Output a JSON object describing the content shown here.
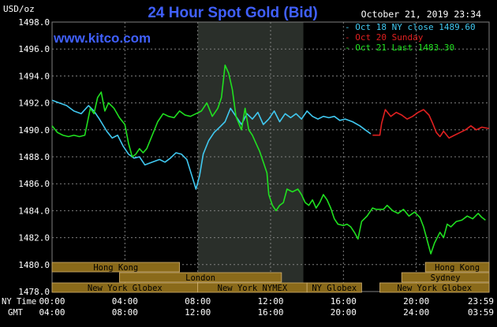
{
  "header": {
    "title": "24 Hour Spot Gold (Bid)",
    "unit_label": "USD/oz",
    "timestamp": "October 21, 2019 23:34",
    "watermark": "www.kitco.com"
  },
  "colors": {
    "background": "#000000",
    "grid": "#808080",
    "title": "#4060ff",
    "axis_text": "#ffffff",
    "oct18": "#40c8f0",
    "oct20": "#e02020",
    "oct21": "#20e020",
    "band_fill": "#8a6a1a",
    "band_text": "#000000",
    "band_edge": "#d0b070",
    "london_highlight": "#2a2f2a"
  },
  "chart_data": {
    "type": "line",
    "title": "24 Hour Spot Gold (Bid)",
    "ylabel": "USD/oz",
    "ylim": [
      1478.0,
      1498.0
    ],
    "y_ticks": [
      "1478.0",
      "1480.0",
      "1482.0",
      "1484.0",
      "1486.0",
      "1488.0",
      "1490.0",
      "1492.0",
      "1494.0",
      "1496.0",
      "1498.0"
    ],
    "x_range": [
      0,
      24
    ],
    "x_ticks": [
      {
        "ny": "00:00",
        "gmt": "04:00"
      },
      {
        "ny": "04:00",
        "gmt": "08:00"
      },
      {
        "ny": "08:00",
        "gmt": "12:00"
      },
      {
        "ny": "12:00",
        "gmt": "16:00"
      },
      {
        "ny": "16:00",
        "gmt": "20:00"
      },
      {
        "ny": "20:00",
        "gmt": "24:00"
      },
      {
        "ny": "23:59",
        "gmt": "03:59"
      }
    ],
    "x_axis_labels": {
      "ny": "NY Time",
      "gmt": "GMT"
    },
    "grid": true,
    "legend_position": "top-right",
    "legend": [
      {
        "key": "oct18",
        "text": "- Oct 18 NY close 1489.60"
      },
      {
        "key": "oct20",
        "text": "- Oct 20 Sunday"
      },
      {
        "key": "oct21",
        "text": "- Oct 21 Last 1483.30"
      }
    ],
    "series": [
      {
        "name": "Oct 18",
        "color_key": "oct18",
        "points": [
          [
            0,
            1492.2
          ],
          [
            0.4,
            1492.0
          ],
          [
            0.8,
            1491.8
          ],
          [
            1.2,
            1491.4
          ],
          [
            1.6,
            1491.2
          ],
          [
            2.0,
            1491.8
          ],
          [
            2.3,
            1491.4
          ],
          [
            2.6,
            1490.8
          ],
          [
            3.0,
            1489.9
          ],
          [
            3.3,
            1489.4
          ],
          [
            3.6,
            1489.6
          ],
          [
            3.9,
            1488.8
          ],
          [
            4.2,
            1488.2
          ],
          [
            4.5,
            1487.9
          ],
          [
            4.8,
            1488.0
          ],
          [
            5.1,
            1487.4
          ],
          [
            5.5,
            1487.6
          ],
          [
            5.9,
            1487.8
          ],
          [
            6.2,
            1487.6
          ],
          [
            6.5,
            1487.9
          ],
          [
            6.8,
            1488.3
          ],
          [
            7.1,
            1488.2
          ],
          [
            7.4,
            1487.8
          ],
          [
            7.7,
            1486.5
          ],
          [
            7.9,
            1485.6
          ],
          [
            8.1,
            1486.6
          ],
          [
            8.3,
            1488.2
          ],
          [
            8.6,
            1489.2
          ],
          [
            8.9,
            1489.8
          ],
          [
            9.2,
            1490.2
          ],
          [
            9.5,
            1490.6
          ],
          [
            9.8,
            1491.6
          ],
          [
            10.1,
            1491.0
          ],
          [
            10.4,
            1490.4
          ],
          [
            10.7,
            1491.2
          ],
          [
            11.0,
            1490.8
          ],
          [
            11.3,
            1491.3
          ],
          [
            11.6,
            1490.4
          ],
          [
            11.9,
            1490.8
          ],
          [
            12.2,
            1491.4
          ],
          [
            12.5,
            1490.6
          ],
          [
            12.8,
            1491.2
          ],
          [
            13.1,
            1490.9
          ],
          [
            13.4,
            1491.2
          ],
          [
            13.7,
            1490.8
          ],
          [
            14.0,
            1491.4
          ],
          [
            14.3,
            1491.0
          ],
          [
            14.6,
            1490.8
          ],
          [
            14.9,
            1491.0
          ],
          [
            15.2,
            1490.9
          ],
          [
            15.5,
            1491.0
          ],
          [
            15.8,
            1490.7
          ],
          [
            16.1,
            1490.8
          ],
          [
            16.5,
            1490.6
          ],
          [
            16.9,
            1490.3
          ],
          [
            17.2,
            1490.0
          ],
          [
            17.5,
            1489.7
          ]
        ]
      },
      {
        "name": "Oct 20",
        "color_key": "oct20",
        "points": [
          [
            17.6,
            1489.6
          ],
          [
            18.0,
            1489.6
          ],
          [
            18.1,
            1490.5
          ],
          [
            18.3,
            1491.5
          ],
          [
            18.6,
            1491.0
          ],
          [
            18.9,
            1491.3
          ],
          [
            19.2,
            1491.1
          ],
          [
            19.5,
            1490.8
          ],
          [
            19.8,
            1491.0
          ],
          [
            20.1,
            1491.3
          ],
          [
            20.4,
            1491.5
          ],
          [
            20.7,
            1491.1
          ],
          [
            20.9,
            1490.5
          ],
          [
            21.1,
            1489.8
          ],
          [
            21.3,
            1489.5
          ],
          [
            21.5,
            1489.9
          ],
          [
            21.8,
            1489.4
          ],
          [
            22.1,
            1489.6
          ],
          [
            22.4,
            1489.8
          ],
          [
            22.7,
            1490.0
          ],
          [
            23.0,
            1490.3
          ],
          [
            23.3,
            1490.0
          ],
          [
            23.6,
            1490.2
          ],
          [
            23.99,
            1490.1
          ]
        ]
      },
      {
        "name": "Oct 21",
        "color_key": "oct21",
        "points": [
          [
            0,
            1490.3
          ],
          [
            0.3,
            1489.8
          ],
          [
            0.6,
            1489.6
          ],
          [
            0.9,
            1489.5
          ],
          [
            1.2,
            1489.6
          ],
          [
            1.5,
            1489.5
          ],
          [
            1.8,
            1489.6
          ],
          [
            2.1,
            1491.6
          ],
          [
            2.3,
            1491.2
          ],
          [
            2.5,
            1492.4
          ],
          [
            2.7,
            1492.8
          ],
          [
            2.9,
            1491.4
          ],
          [
            3.1,
            1492.0
          ],
          [
            3.4,
            1491.6
          ],
          [
            3.7,
            1490.9
          ],
          [
            4.0,
            1490.4
          ],
          [
            4.2,
            1489.0
          ],
          [
            4.4,
            1488.0
          ],
          [
            4.6,
            1488.2
          ],
          [
            4.8,
            1488.6
          ],
          [
            5.0,
            1488.3
          ],
          [
            5.2,
            1488.6
          ],
          [
            5.5,
            1489.6
          ],
          [
            5.8,
            1490.6
          ],
          [
            6.1,
            1491.2
          ],
          [
            6.4,
            1491.0
          ],
          [
            6.7,
            1490.9
          ],
          [
            7.0,
            1491.4
          ],
          [
            7.3,
            1491.1
          ],
          [
            7.6,
            1491.0
          ],
          [
            7.9,
            1491.2
          ],
          [
            8.2,
            1491.4
          ],
          [
            8.5,
            1492.0
          ],
          [
            8.8,
            1491.0
          ],
          [
            9.1,
            1491.6
          ],
          [
            9.3,
            1492.4
          ],
          [
            9.5,
            1494.8
          ],
          [
            9.7,
            1494.2
          ],
          [
            9.9,
            1493.0
          ],
          [
            10.1,
            1491.0
          ],
          [
            10.4,
            1490.0
          ],
          [
            10.6,
            1491.6
          ],
          [
            10.8,
            1490.0
          ],
          [
            11.0,
            1489.6
          ],
          [
            11.2,
            1489.0
          ],
          [
            11.4,
            1488.4
          ],
          [
            11.6,
            1487.6
          ],
          [
            11.8,
            1486.8
          ],
          [
            11.9,
            1485.2
          ],
          [
            12.1,
            1484.4
          ],
          [
            12.3,
            1484.0
          ],
          [
            12.5,
            1484.4
          ],
          [
            12.7,
            1484.6
          ],
          [
            12.9,
            1485.6
          ],
          [
            13.2,
            1485.4
          ],
          [
            13.5,
            1485.6
          ],
          [
            13.7,
            1485.2
          ],
          [
            13.9,
            1484.6
          ],
          [
            14.1,
            1484.4
          ],
          [
            14.3,
            1484.8
          ],
          [
            14.5,
            1484.2
          ],
          [
            14.7,
            1484.6
          ],
          [
            14.9,
            1485.2
          ],
          [
            15.1,
            1484.8
          ],
          [
            15.3,
            1484.2
          ],
          [
            15.5,
            1483.4
          ],
          [
            15.7,
            1483.0
          ],
          [
            16.0,
            1482.9
          ],
          [
            16.2,
            1483.0
          ],
          [
            16.4,
            1482.8
          ],
          [
            16.6,
            1482.4
          ],
          [
            16.8,
            1481.9
          ],
          [
            17.0,
            1483.2
          ],
          [
            17.3,
            1483.6
          ],
          [
            17.6,
            1484.2
          ],
          [
            17.8,
            1484.1
          ],
          [
            18.2,
            1484.1
          ],
          [
            18.4,
            1484.4
          ],
          [
            18.7,
            1484.0
          ],
          [
            19.0,
            1483.8
          ],
          [
            19.3,
            1484.1
          ],
          [
            19.6,
            1483.6
          ],
          [
            19.9,
            1483.9
          ],
          [
            20.2,
            1483.5
          ],
          [
            20.4,
            1482.8
          ],
          [
            20.6,
            1481.8
          ],
          [
            20.8,
            1480.8
          ],
          [
            21.0,
            1481.6
          ],
          [
            21.3,
            1482.4
          ],
          [
            21.5,
            1482.0
          ],
          [
            21.7,
            1483.0
          ],
          [
            21.9,
            1482.8
          ],
          [
            22.2,
            1483.2
          ],
          [
            22.5,
            1483.3
          ],
          [
            22.8,
            1483.6
          ],
          [
            23.1,
            1483.4
          ],
          [
            23.4,
            1483.8
          ],
          [
            23.6,
            1483.5
          ],
          [
            23.8,
            1483.3
          ]
        ]
      }
    ],
    "highlight_band": {
      "from": 8.0,
      "to": 13.8
    }
  },
  "sessions": [
    {
      "label": "Hong Kong",
      "row": 0,
      "from": 0.0,
      "to": 7.0
    },
    {
      "label": "London",
      "row": 1,
      "from": 3.7,
      "to": 12.6
    },
    {
      "label": "New York Globex",
      "row": 2,
      "from": 0.0,
      "to": 8.0
    },
    {
      "label": "New York NYMEX",
      "row": 2,
      "from": 8.0,
      "to": 14.0
    },
    {
      "label": "NY Globex",
      "row": 2,
      "from": 14.0,
      "to": 17.0
    },
    {
      "label": "Hong Kong",
      "row": 0,
      "from": 20.5,
      "to": 24.0
    },
    {
      "label": "Sydney",
      "row": 1,
      "from": 19.2,
      "to": 24.0
    },
    {
      "label": "New York Globex",
      "row": 2,
      "from": 18.0,
      "to": 24.0
    }
  ]
}
